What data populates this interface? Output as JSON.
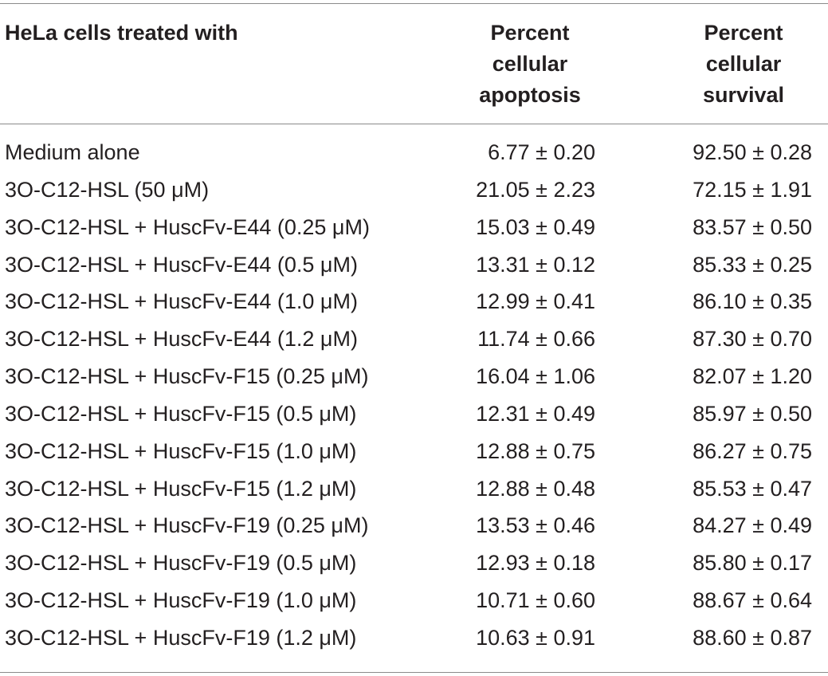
{
  "table": {
    "headers": {
      "col0": "HeLa cells treated with",
      "col1": [
        "Percent",
        "cellular",
        "apoptosis"
      ],
      "col2": [
        "Percent",
        "cellular",
        "survival"
      ]
    },
    "rows": [
      {
        "treatment": "Medium alone",
        "apoptosis": "6.77 ± 0.20",
        "survival": "92.50 ± 0.28"
      },
      {
        "treatment": "3O-C12-HSL (50 μM)",
        "apoptosis": "21.05 ± 2.23",
        "survival": "72.15 ± 1.91"
      },
      {
        "treatment": "3O-C12-HSL + HuscFv-E44 (0.25 μM)",
        "apoptosis": "15.03 ± 0.49",
        "survival": "83.57 ± 0.50"
      },
      {
        "treatment": "3O-C12-HSL + HuscFv-E44 (0.5 μM)",
        "apoptosis": "13.31 ± 0.12",
        "survival": "85.33 ± 0.25"
      },
      {
        "treatment": "3O-C12-HSL + HuscFv-E44 (1.0 μM)",
        "apoptosis": "12.99 ± 0.41",
        "survival": "86.10 ± 0.35"
      },
      {
        "treatment": "3O-C12-HSL + HuscFv-E44 (1.2 μM)",
        "apoptosis": "11.74 ± 0.66",
        "survival": "87.30 ± 0.70"
      },
      {
        "treatment": "3O-C12-HSL + HuscFv-F15 (0.25 μM)",
        "apoptosis": "16.04 ± 1.06",
        "survival": "82.07 ± 1.20"
      },
      {
        "treatment": "3O-C12-HSL + HuscFv-F15 (0.5 μM)",
        "apoptosis": "12.31 ± 0.49",
        "survival": "85.97 ± 0.50"
      },
      {
        "treatment": "3O-C12-HSL + HuscFv-F15 (1.0 μM)",
        "apoptosis": "12.88 ± 0.75",
        "survival": "86.27 ± 0.75"
      },
      {
        "treatment": "3O-C12-HSL + HuscFv-F15 (1.2 μM)",
        "apoptosis": "12.88 ± 0.48",
        "survival": "85.53 ± 0.47"
      },
      {
        "treatment": "3O-C12-HSL + HuscFv-F19 (0.25 μM)",
        "apoptosis": "13.53 ± 0.46",
        "survival": "84.27 ± 0.49"
      },
      {
        "treatment": "3O-C12-HSL + HuscFv-F19 (0.5 μM)",
        "apoptosis": "12.93 ± 0.18",
        "survival": "85.80 ± 0.17"
      },
      {
        "treatment": "3O-C12-HSL + HuscFv-F19 (1.0 μM)",
        "apoptosis": "10.71 ± 0.60",
        "survival": "88.67 ± 0.64"
      },
      {
        "treatment": "3O-C12-HSL + HuscFv-F19 (1.2 μM)",
        "apoptosis": "10.63 ± 0.91",
        "survival": "88.60 ± 0.87"
      }
    ]
  }
}
